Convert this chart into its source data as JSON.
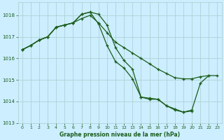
{
  "title": "Graphe pression niveau de la mer (hPa)",
  "bg_color": "#cceeff",
  "grid_color": "#aacccc",
  "line_color": "#1a5c1a",
  "ylim": [
    1013.0,
    1018.6
  ],
  "yticks": [
    1013,
    1014,
    1015,
    1016,
    1017,
    1018
  ],
  "xlim": [
    -0.5,
    23.5
  ],
  "xticks": [
    0,
    1,
    2,
    3,
    4,
    5,
    6,
    7,
    8,
    9,
    10,
    11,
    12,
    13,
    14,
    15,
    16,
    17,
    18,
    19,
    20,
    21,
    22,
    23
  ],
  "s1_x": [
    0,
    1,
    2,
    3,
    4,
    5,
    6,
    7,
    8,
    9,
    10,
    11,
    12,
    13,
    14,
    15,
    16,
    17,
    18,
    19,
    20,
    21,
    22,
    23
  ],
  "s1_y": [
    1016.4,
    1016.6,
    1016.85,
    1017.0,
    1017.45,
    1017.55,
    1017.65,
    1017.85,
    1018.0,
    1017.65,
    1017.2,
    1016.75,
    1016.5,
    1016.25,
    1016.0,
    1015.75,
    1015.5,
    1015.3,
    1015.1,
    1015.05,
    1015.05,
    1015.15,
    1015.2,
    1015.2
  ],
  "s2_x": [
    0,
    1,
    2,
    3,
    4,
    5,
    6,
    7,
    8,
    9,
    10,
    11,
    12,
    13,
    14,
    15,
    16,
    17,
    18,
    19,
    20
  ],
  "s2_y": [
    1016.4,
    1016.6,
    1016.85,
    1017.0,
    1017.45,
    1017.55,
    1017.65,
    1018.05,
    1018.15,
    1018.05,
    1017.55,
    1016.5,
    1015.9,
    1015.5,
    1014.2,
    1014.1,
    1014.1,
    1013.8,
    1013.6,
    1013.5,
    1013.55
  ],
  "s3_x": [
    0,
    1,
    2,
    3,
    4,
    5,
    6,
    7,
    8,
    9,
    10,
    11,
    12,
    13,
    14,
    15,
    16,
    17,
    18,
    19,
    20,
    21,
    22
  ],
  "s3_y": [
    1016.4,
    1016.6,
    1016.85,
    1017.0,
    1017.45,
    1017.55,
    1017.65,
    1018.05,
    1018.15,
    1017.6,
    1016.6,
    1015.85,
    1015.55,
    1015.05,
    1014.2,
    1014.15,
    1014.1,
    1013.8,
    1013.65,
    1013.5,
    1013.6,
    1014.85,
    1015.2
  ]
}
